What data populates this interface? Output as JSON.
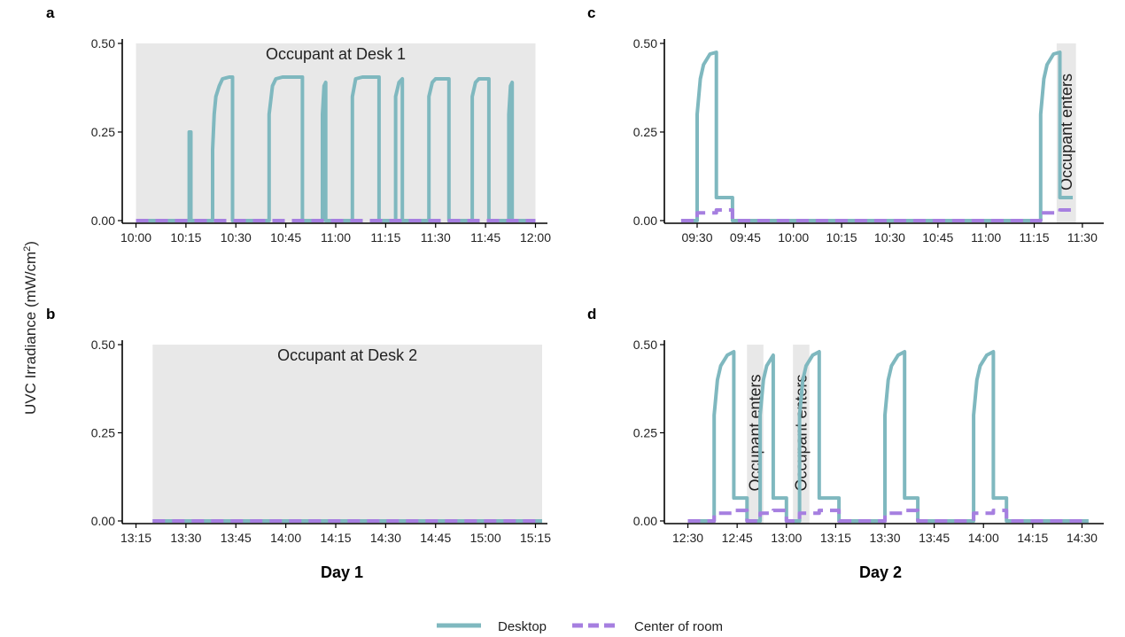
{
  "colors": {
    "desktop": "#7fb8bf",
    "center": "#a67fe0",
    "shade": "#e8e8e8"
  },
  "y_axis": {
    "label_prefix": "UVC Irradiance (mW/cm",
    "label_sup": "2",
    "label_suffix": ")",
    "ticks": [
      "0.00",
      "0.25",
      "0.50"
    ],
    "tick_values": [
      0,
      0.25,
      0.5
    ],
    "ylim": [
      -0.01,
      0.52
    ]
  },
  "x_titles": {
    "left": "Day 1",
    "right": "Day 2"
  },
  "legend": {
    "position": "bottom-center",
    "items": [
      {
        "name": "Desktop",
        "style": "solid"
      },
      {
        "name": "Center of room",
        "style": "dashed"
      }
    ]
  },
  "chart_data": [
    {
      "panel": "a",
      "type": "line",
      "xlim": [
        598,
        722
      ],
      "x_ticks": [
        600,
        615,
        630,
        645,
        660,
        675,
        690,
        705,
        720
      ],
      "x_tick_labels": [
        "10:00",
        "10:15",
        "10:30",
        "10:45",
        "11:00",
        "11:15",
        "11:30",
        "11:45",
        "12:00"
      ],
      "shaded": [
        {
          "from": 600,
          "to": 720,
          "label": "Occupant at Desk 1",
          "label_orientation": "horizontal"
        }
      ],
      "series": [
        {
          "name": "Desktop",
          "x": [
            600,
            616,
            616,
            616.5,
            616.5,
            623,
            623,
            623.5,
            624,
            625,
            626,
            628,
            629,
            629,
            640,
            640,
            641,
            642,
            644,
            650,
            650,
            656,
            656,
            656.5,
            657,
            657,
            665,
            665,
            666,
            668,
            673,
            673,
            678,
            678,
            679,
            680,
            680,
            688,
            688,
            689,
            690,
            694,
            694,
            701,
            701,
            702,
            703,
            706,
            706,
            712,
            712,
            712.5,
            713,
            713,
            720
          ],
          "y": [
            0,
            0,
            0.25,
            0.25,
            0,
            0,
            0.2,
            0.3,
            0.35,
            0.38,
            0.4,
            0.405,
            0.405,
            0,
            0,
            0.3,
            0.38,
            0.4,
            0.405,
            0.405,
            0,
            0,
            0.3,
            0.38,
            0.39,
            0,
            0,
            0.35,
            0.4,
            0.405,
            0.405,
            0,
            0,
            0.35,
            0.39,
            0.4,
            0,
            0,
            0.35,
            0.39,
            0.4,
            0.4,
            0,
            0,
            0.35,
            0.39,
            0.4,
            0.4,
            0,
            0,
            0.3,
            0.38,
            0.39,
            0,
            0
          ]
        },
        {
          "name": "Center of room",
          "x": [
            600,
            720
          ],
          "y": [
            0,
            0
          ]
        }
      ]
    },
    {
      "panel": "b",
      "type": "line",
      "xlim": [
        793,
        917
      ],
      "x_ticks": [
        795,
        810,
        825,
        840,
        855,
        870,
        885,
        900,
        915
      ],
      "x_tick_labels": [
        "13:15",
        "13:30",
        "13:45",
        "14:00",
        "14:15",
        "14:30",
        "14:45",
        "15:00",
        "15:15"
      ],
      "shaded": [
        {
          "from": 800,
          "to": 917,
          "label": "Occupant at Desk 2",
          "label_orientation": "horizontal"
        }
      ],
      "series": [
        {
          "name": "Desktop",
          "x": [
            800,
            917
          ],
          "y": [
            0,
            0
          ]
        },
        {
          "name": "Center of room",
          "x": [
            800,
            917
          ],
          "y": [
            0,
            0
          ]
        }
      ]
    },
    {
      "panel": "c",
      "type": "line",
      "xlim": [
        562,
        695
      ],
      "x_ticks": [
        570,
        585,
        600,
        615,
        630,
        645,
        660,
        675,
        690
      ],
      "x_tick_labels": [
        "09:30",
        "09:45",
        "10:00",
        "10:15",
        "10:30",
        "10:45",
        "11:00",
        "11:15",
        "11:30"
      ],
      "shaded": [
        {
          "from": 682,
          "to": 688,
          "label": "Occupant enters",
          "label_orientation": "vertical"
        }
      ],
      "series": [
        {
          "name": "Desktop",
          "x": [
            565,
            570,
            570,
            571,
            572,
            574,
            576,
            576,
            581,
            581,
            677,
            677,
            678,
            679,
            681,
            683,
            683,
            687,
            687
          ],
          "y": [
            0,
            0,
            0.3,
            0.4,
            0.44,
            0.47,
            0.475,
            0.065,
            0.065,
            0,
            0,
            0.3,
            0.4,
            0.44,
            0.47,
            0.475,
            0.065,
            0.065,
            0.065
          ]
        },
        {
          "name": "Center of room",
          "x": [
            565,
            570,
            570,
            576,
            576,
            581,
            581,
            677,
            677,
            683,
            683,
            687
          ],
          "y": [
            0,
            0,
            0.022,
            0.022,
            0.03,
            0.03,
            0,
            0,
            0.022,
            0.022,
            0.03,
            0.03
          ]
        }
      ]
    },
    {
      "panel": "d",
      "type": "line",
      "xlim": [
        745,
        875
      ],
      "x_ticks": [
        750,
        765,
        780,
        795,
        810,
        825,
        840,
        855,
        870
      ],
      "x_tick_labels": [
        "12:30",
        "12:45",
        "13:00",
        "13:15",
        "13:30",
        "13:45",
        "14:00",
        "14:15",
        "14:30"
      ],
      "shaded": [
        {
          "from": 768,
          "to": 773,
          "label": "Occupant enters",
          "label_orientation": "vertical"
        },
        {
          "from": 782,
          "to": 787,
          "label": "Occupant enters",
          "label_orientation": "vertical"
        }
      ],
      "series": [
        {
          "name": "Desktop",
          "x": [
            750,
            758,
            758,
            759,
            760,
            762,
            764,
            764,
            768,
            768,
            772,
            772,
            773,
            774,
            776,
            776,
            780,
            780,
            784,
            784,
            785,
            786,
            788,
            790,
            790,
            796,
            796,
            810,
            810,
            811,
            812,
            814,
            816,
            816,
            820,
            820,
            837,
            837,
            838,
            839,
            841,
            843,
            843,
            847,
            847,
            872
          ],
          "y": [
            0,
            0,
            0.3,
            0.4,
            0.44,
            0.47,
            0.48,
            0.065,
            0.065,
            0,
            0,
            0.3,
            0.4,
            0.44,
            0.47,
            0.065,
            0.065,
            0,
            0,
            0.3,
            0.4,
            0.44,
            0.47,
            0.48,
            0.065,
            0.065,
            0,
            0,
            0.3,
            0.4,
            0.44,
            0.47,
            0.48,
            0.065,
            0.065,
            0,
            0,
            0.3,
            0.4,
            0.44,
            0.47,
            0.48,
            0.065,
            0.065,
            0,
            0
          ]
        },
        {
          "name": "Center of room",
          "x": [
            750,
            758,
            758,
            764,
            764,
            768,
            768,
            772,
            772,
            776,
            776,
            780,
            780,
            784,
            784,
            790,
            790,
            796,
            796,
            810,
            810,
            816,
            816,
            820,
            820,
            837,
            837,
            843,
            843,
            847,
            847,
            872
          ],
          "y": [
            0,
            0,
            0.022,
            0.022,
            0.03,
            0.03,
            0,
            0,
            0.022,
            0.022,
            0.03,
            0.03,
            0,
            0,
            0.022,
            0.022,
            0.03,
            0.03,
            0,
            0,
            0.022,
            0.022,
            0.03,
            0.03,
            0,
            0,
            0.022,
            0.022,
            0.03,
            0.03,
            0,
            0
          ]
        }
      ]
    }
  ]
}
